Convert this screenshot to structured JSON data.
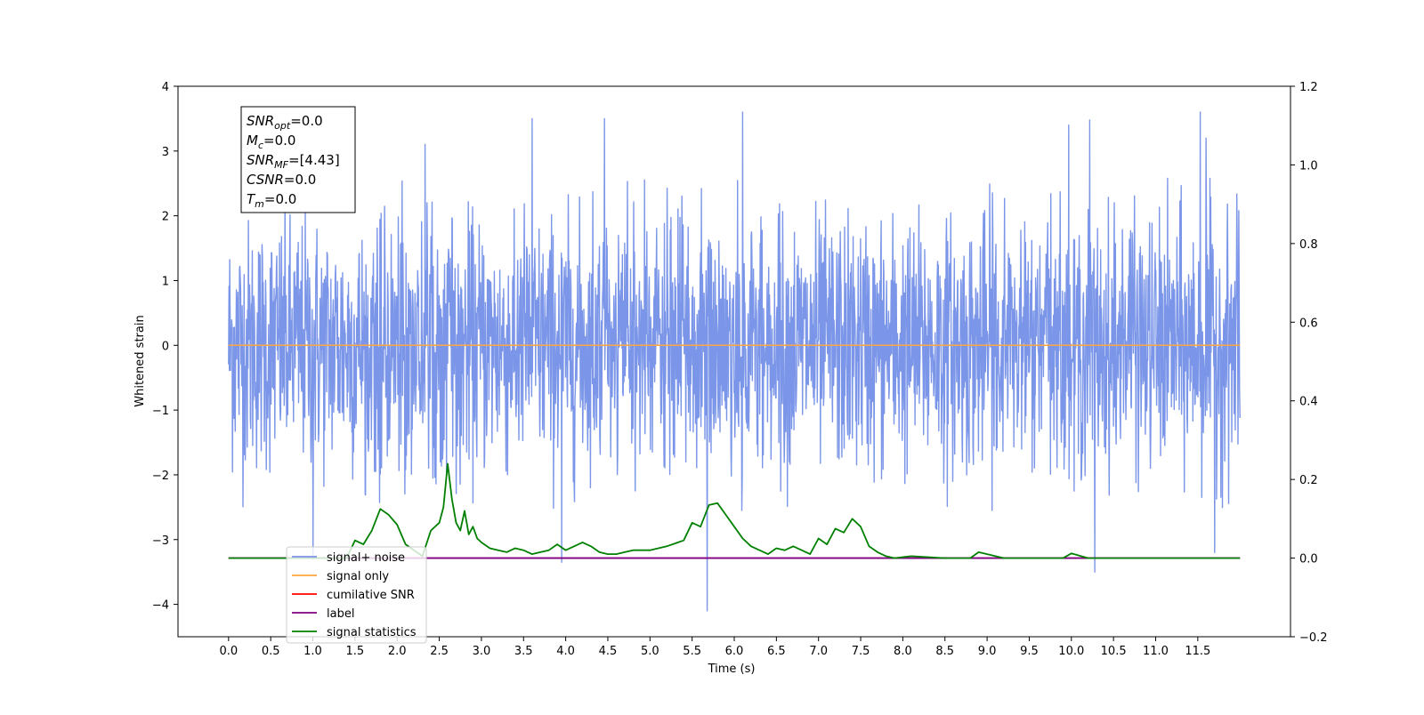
{
  "chart_data": {
    "type": "line",
    "xlabel": "Time (s)",
    "ylabel": "Whitened strain",
    "xlim": [
      -0.6,
      12.6
    ],
    "ylim_left": [
      -4.5,
      4
    ],
    "ylim_right": [
      -0.2,
      1.2
    ],
    "x_ticks": [
      "0.0",
      "0.5",
      "1.0",
      "1.5",
      "2.0",
      "2.5",
      "3.0",
      "3.5",
      "4.0",
      "4.5",
      "5.0",
      "5.5",
      "6.0",
      "6.5",
      "7.0",
      "7.5",
      "8.0",
      "8.5",
      "9.0",
      "9.5",
      "10.0",
      "10.5",
      "11.0",
      "11.5"
    ],
    "y_ticks_left": [
      "−4",
      "−3",
      "−2",
      "−1",
      "0",
      "1",
      "2",
      "3",
      "4"
    ],
    "y_ticks_right": [
      "−0.2",
      "0.0",
      "0.2",
      "0.4",
      "0.6",
      "0.8",
      "1.0",
      "1.2"
    ],
    "grid": false,
    "legend_placement": "lower-left",
    "stats_box": {
      "lines": [
        {
          "sym": "SNR",
          "sub": "opt",
          "value": "=0.0"
        },
        {
          "sym": "M",
          "sub": "c",
          "value": "=0.0"
        },
        {
          "sym": "SNR",
          "sub": "MF",
          "value": "=[4.43]"
        },
        {
          "sym": "CSNR",
          "sub": "",
          "value": "=0.0"
        },
        {
          "sym": "T",
          "sub": "m",
          "value": "=0.0"
        }
      ]
    },
    "series": [
      {
        "name": "signal+ noise",
        "color": "#7b96e8",
        "axis": "left",
        "x_range": [
          0.0,
          12.0
        ],
        "typical_range": [
          -2.0,
          2.0
        ],
        "extreme_range": [
          -4.1,
          3.6
        ],
        "peaks": [
          {
            "x": 2.33,
            "y": 3.1
          },
          {
            "x": 3.6,
            "y": 3.5
          },
          {
            "x": 4.46,
            "y": 3.5
          },
          {
            "x": 6.1,
            "y": 3.6
          },
          {
            "x": 9.97,
            "y": 3.4
          },
          {
            "x": 10.22,
            "y": 3.48
          },
          {
            "x": 11.53,
            "y": 3.6
          },
          {
            "x": 11.6,
            "y": 3.2
          }
        ],
        "troughs": [
          {
            "x": 1.0,
            "y": -3.3
          },
          {
            "x": 3.95,
            "y": -3.35
          },
          {
            "x": 5.68,
            "y": -4.1
          },
          {
            "x": 10.28,
            "y": -3.5
          },
          {
            "x": 11.7,
            "y": -3.2
          }
        ]
      },
      {
        "name": "signal only",
        "color": "#ffa640",
        "axis": "left",
        "x": [
          0.0,
          12.0
        ],
        "y": [
          0.0,
          0.0
        ]
      },
      {
        "name": "cumilative SNR",
        "color": "#ff0000",
        "axis": "right",
        "x": [
          0.0,
          12.0
        ],
        "y": [
          0.0,
          0.0
        ]
      },
      {
        "name": "label",
        "color": "#800080",
        "axis": "right",
        "x": [
          0.0,
          12.0
        ],
        "y": [
          0.0,
          0.0
        ]
      },
      {
        "name": "signal statistics",
        "color": "#008000",
        "axis": "right",
        "x": [
          0.0,
          1.4,
          1.5,
          1.6,
          1.7,
          1.8,
          1.9,
          2.0,
          2.1,
          2.2,
          2.3,
          2.4,
          2.5,
          2.55,
          2.6,
          2.65,
          2.7,
          2.75,
          2.8,
          2.85,
          2.9,
          2.95,
          3.0,
          3.1,
          3.2,
          3.3,
          3.4,
          3.5,
          3.6,
          3.7,
          3.8,
          3.9,
          4.0,
          4.1,
          4.2,
          4.3,
          4.4,
          4.5,
          4.6,
          4.7,
          4.8,
          5.0,
          5.2,
          5.4,
          5.5,
          5.6,
          5.7,
          5.8,
          5.9,
          6.0,
          6.1,
          6.2,
          6.3,
          6.4,
          6.5,
          6.6,
          6.7,
          6.8,
          6.9,
          7.0,
          7.1,
          7.2,
          7.3,
          7.4,
          7.5,
          7.6,
          7.7,
          7.8,
          7.9,
          8.1,
          8.5,
          8.8,
          8.9,
          9.0,
          9.2,
          9.5,
          9.9,
          10.0,
          10.2,
          10.5,
          11.0,
          11.5,
          12.0
        ],
        "y": [
          0.0,
          0.0,
          0.045,
          0.035,
          0.07,
          0.125,
          0.11,
          0.085,
          0.035,
          0.02,
          0.005,
          0.07,
          0.09,
          0.13,
          0.24,
          0.15,
          0.09,
          0.07,
          0.12,
          0.06,
          0.08,
          0.05,
          0.04,
          0.025,
          0.02,
          0.015,
          0.025,
          0.02,
          0.01,
          0.015,
          0.02,
          0.035,
          0.02,
          0.03,
          0.04,
          0.03,
          0.015,
          0.01,
          0.01,
          0.015,
          0.02,
          0.02,
          0.03,
          0.045,
          0.09,
          0.08,
          0.135,
          0.14,
          0.11,
          0.08,
          0.05,
          0.03,
          0.02,
          0.01,
          0.025,
          0.02,
          0.03,
          0.02,
          0.01,
          0.05,
          0.035,
          0.075,
          0.065,
          0.1,
          0.08,
          0.03,
          0.015,
          0.005,
          0.0,
          0.005,
          0.0,
          0.0,
          0.015,
          0.01,
          0.0,
          0.0,
          0.0,
          0.012,
          0.0,
          0.0,
          0.0,
          0.0,
          0.0
        ]
      }
    ]
  }
}
